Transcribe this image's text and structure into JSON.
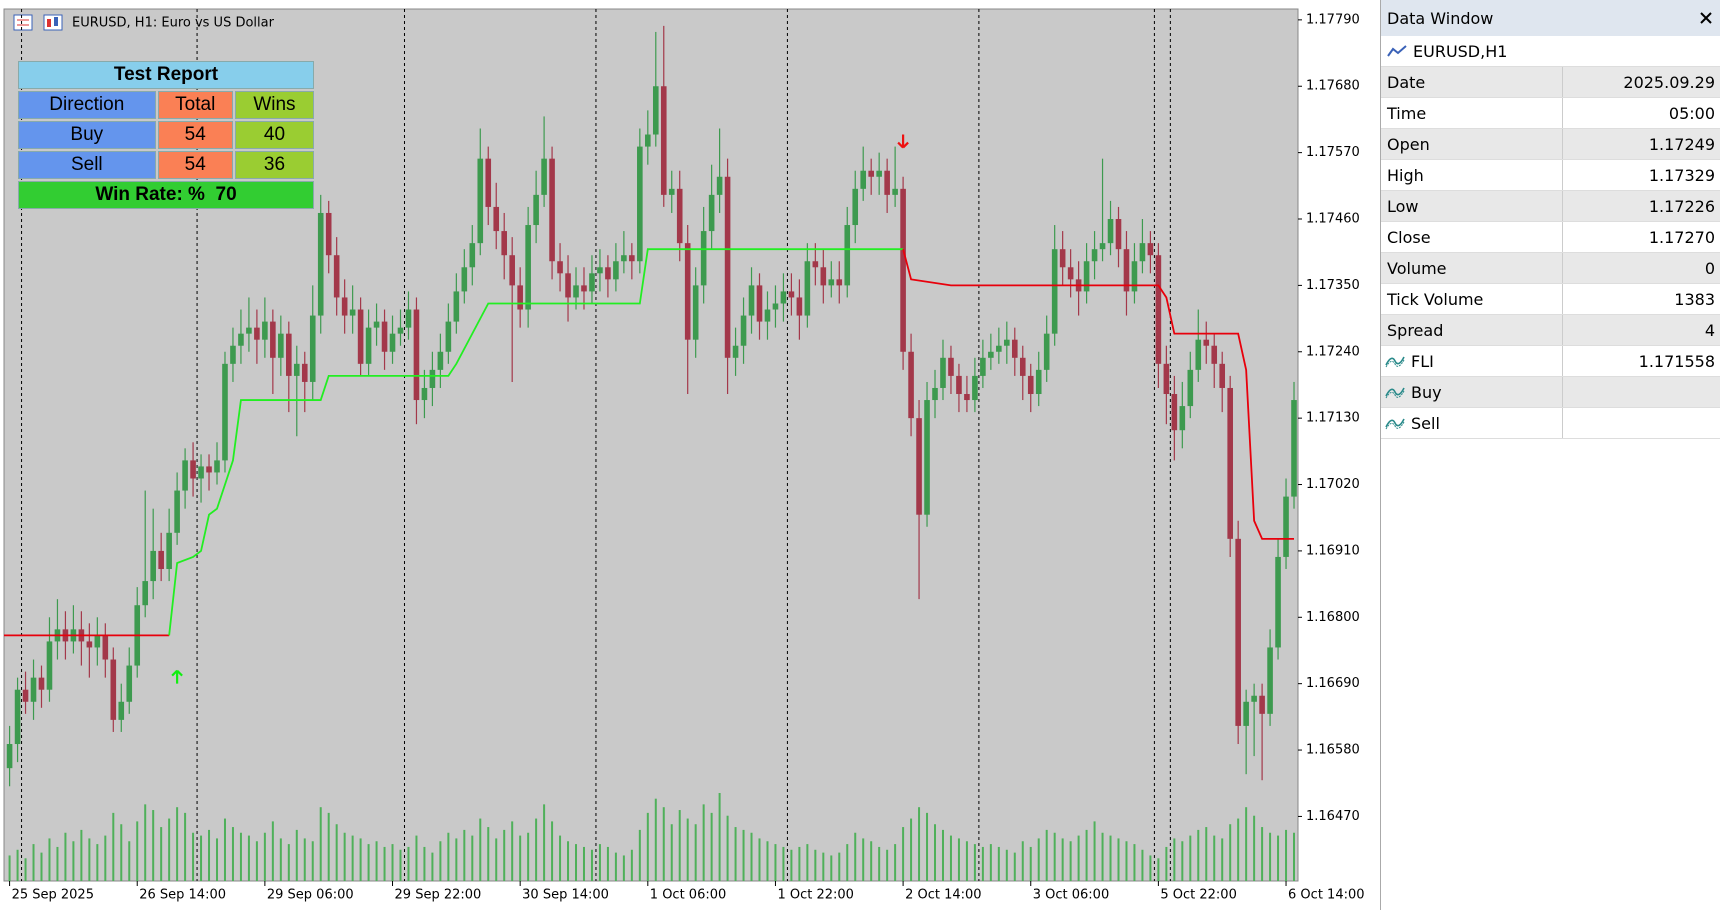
{
  "window_title": "EURUSD, H1:  Euro vs US Dollar",
  "report": {
    "title": "Test Report",
    "headers": [
      "Direction",
      "Total",
      "Wins"
    ],
    "rows": [
      [
        "Buy",
        54,
        40
      ],
      [
        "Sell",
        54,
        36
      ]
    ],
    "win_rate_label": "Win Rate: %",
    "win_rate": 70
  },
  "data_window": {
    "title": "Data Window",
    "symbol": "EURUSD,H1",
    "rows": [
      {
        "label": "Date",
        "value": "2025.09.29"
      },
      {
        "label": "Time",
        "value": "05:00"
      },
      {
        "label": "Open",
        "value": "1.17249"
      },
      {
        "label": "High",
        "value": "1.17329"
      },
      {
        "label": "Low",
        "value": "1.17226"
      },
      {
        "label": "Close",
        "value": "1.17270"
      },
      {
        "label": "Volume",
        "value": "0"
      },
      {
        "label": "Tick Volume",
        "value": "1383"
      },
      {
        "label": "Spread",
        "value": "4"
      },
      {
        "label": "FLI",
        "value": "1.171558",
        "indicator": true
      },
      {
        "label": "Buy",
        "indicator": true
      },
      {
        "label": "Sell",
        "indicator": true
      }
    ]
  },
  "chart_data": {
    "type": "candlestick",
    "up_color": "#3d9a4f",
    "down_color": "#a3384a",
    "volume_color": "#4fb05a",
    "background": "#c9c9c9",
    "xlim": [
      -0.7,
      161.5
    ],
    "ylim": [
      1.16363,
      1.17808
    ],
    "yticks": [
      {
        "value": 1.1779,
        "label": "1.17790"
      },
      {
        "value": 1.1768,
        "label": "1.17680"
      },
      {
        "value": 1.1757,
        "label": "1.17570"
      },
      {
        "value": 1.1746,
        "label": "1.17460"
      },
      {
        "value": 1.1735,
        "label": "1.17350"
      },
      {
        "value": 1.1724,
        "label": "1.17240"
      },
      {
        "value": 1.1713,
        "label": "1.17130"
      },
      {
        "value": 1.1702,
        "label": "1.17020"
      },
      {
        "value": 1.1691,
        "label": "1.16910"
      },
      {
        "value": 1.168,
        "label": "1.16800"
      },
      {
        "value": 1.1669,
        "label": "1.16690"
      },
      {
        "value": 1.1658,
        "label": "1.16580"
      },
      {
        "value": 1.1647,
        "label": "1.16470"
      }
    ],
    "xticks": [
      {
        "value": 0,
        "label": "25 Sep 2025"
      },
      {
        "value": 16,
        "label": "26 Sep 14:00"
      },
      {
        "value": 32,
        "label": "29 Sep 06:00"
      },
      {
        "value": 48,
        "label": "29 Sep 22:00"
      },
      {
        "value": 64,
        "label": "30 Sep 14:00"
      },
      {
        "value": 80,
        "label": "1 Oct 06:00"
      },
      {
        "value": 96,
        "label": "1 Oct 22:00"
      },
      {
        "value": 112,
        "label": "2 Oct 14:00"
      },
      {
        "value": 128,
        "label": "3 Oct 06:00"
      },
      {
        "value": 144,
        "label": "5 Oct 22:00"
      },
      {
        "value": 160,
        "label": "6 Oct 14:00"
      }
    ],
    "separators": [
      2,
      24,
      50,
      74,
      98,
      122,
      144,
      146
    ],
    "candles": [
      [
        1.1655,
        1.1662,
        1.1652,
        1.1659
      ],
      [
        1.1659,
        1.167,
        1.1656,
        1.1668
      ],
      [
        1.1668,
        1.1671,
        1.1664,
        1.1666
      ],
      [
        1.1666,
        1.1673,
        1.1663,
        1.167
      ],
      [
        1.167,
        1.1672,
        1.1665,
        1.1668
      ],
      [
        1.1668,
        1.168,
        1.1666,
        1.1676
      ],
      [
        1.1676,
        1.1683,
        1.1673,
        1.1678
      ],
      [
        1.1678,
        1.1681,
        1.1673,
        1.1676
      ],
      [
        1.1676,
        1.1682,
        1.1674,
        1.1678
      ],
      [
        1.1678,
        1.1681,
        1.1672,
        1.1676
      ],
      [
        1.1676,
        1.1679,
        1.167,
        1.1675
      ],
      [
        1.1675,
        1.168,
        1.1672,
        1.1677
      ],
      [
        1.1677,
        1.1679,
        1.167,
        1.1673
      ],
      [
        1.1673,
        1.1675,
        1.1661,
        1.1663
      ],
      [
        1.1663,
        1.1669,
        1.1661,
        1.1666
      ],
      [
        1.1666,
        1.1675,
        1.1664,
        1.1672
      ],
      [
        1.1672,
        1.1685,
        1.167,
        1.1682
      ],
      [
        1.1682,
        1.1701,
        1.168,
        1.1686
      ],
      [
        1.1686,
        1.1698,
        1.1683,
        1.1691
      ],
      [
        1.1691,
        1.1694,
        1.1686,
        1.1688
      ],
      [
        1.1688,
        1.1698,
        1.1686,
        1.1694
      ],
      [
        1.1694,
        1.1704,
        1.1692,
        1.1701
      ],
      [
        1.1701,
        1.1708,
        1.1698,
        1.1706
      ],
      [
        1.1706,
        1.1709,
        1.17,
        1.1703
      ],
      [
        1.1703,
        1.1707,
        1.1699,
        1.1705
      ],
      [
        1.1705,
        1.1707,
        1.1701,
        1.1704
      ],
      [
        1.1704,
        1.1709,
        1.1702,
        1.1706
      ],
      [
        1.1706,
        1.1724,
        1.1704,
        1.1722
      ],
      [
        1.1722,
        1.1728,
        1.1719,
        1.1725
      ],
      [
        1.1725,
        1.1731,
        1.1722,
        1.1727
      ],
      [
        1.1727,
        1.1733,
        1.1724,
        1.1728
      ],
      [
        1.1728,
        1.1731,
        1.1722,
        1.1726
      ],
      [
        1.1726,
        1.1733,
        1.1723,
        1.1729
      ],
      [
        1.1729,
        1.1731,
        1.1717,
        1.1723
      ],
      [
        1.1723,
        1.173,
        1.172,
        1.1727
      ],
      [
        1.1727,
        1.1729,
        1.1714,
        1.172
      ],
      [
        1.172,
        1.1725,
        1.171,
        1.1722
      ],
      [
        1.1722,
        1.1724,
        1.1714,
        1.1719
      ],
      [
        1.1719,
        1.1735,
        1.1716,
        1.173
      ],
      [
        1.173,
        1.175,
        1.1727,
        1.1747
      ],
      [
        1.1747,
        1.1749,
        1.1737,
        1.174
      ],
      [
        1.174,
        1.1743,
        1.173,
        1.1733
      ],
      [
        1.1733,
        1.1736,
        1.1727,
        1.173
      ],
      [
        1.173,
        1.1735,
        1.1727,
        1.1731
      ],
      [
        1.1731,
        1.1733,
        1.172,
        1.1722
      ],
      [
        1.1722,
        1.1731,
        1.172,
        1.1728
      ],
      [
        1.1728,
        1.1732,
        1.1725,
        1.1729
      ],
      [
        1.1729,
        1.1731,
        1.1721,
        1.1724
      ],
      [
        1.1724,
        1.173,
        1.1722,
        1.1727
      ],
      [
        1.1727,
        1.1731,
        1.1725,
        1.1728
      ],
      [
        1.1728,
        1.1734,
        1.1726,
        1.1731
      ],
      [
        1.1731,
        1.1733,
        1.1712,
        1.1716
      ],
      [
        1.1716,
        1.1721,
        1.1713,
        1.1718
      ],
      [
        1.1718,
        1.1724,
        1.1715,
        1.1721
      ],
      [
        1.1721,
        1.1727,
        1.1718,
        1.1724
      ],
      [
        1.1724,
        1.1732,
        1.1722,
        1.1729
      ],
      [
        1.1729,
        1.1737,
        1.1727,
        1.1734
      ],
      [
        1.1734,
        1.1741,
        1.1732,
        1.1738
      ],
      [
        1.1738,
        1.1745,
        1.1735,
        1.1742
      ],
      [
        1.1742,
        1.1761,
        1.174,
        1.1756
      ],
      [
        1.1756,
        1.1758,
        1.1745,
        1.1748
      ],
      [
        1.1748,
        1.1752,
        1.1741,
        1.1744
      ],
      [
        1.1744,
        1.1747,
        1.1736,
        1.174
      ],
      [
        1.174,
        1.1743,
        1.1719,
        1.1735
      ],
      [
        1.1735,
        1.1738,
        1.1728,
        1.1731
      ],
      [
        1.1731,
        1.1748,
        1.1728,
        1.1745
      ],
      [
        1.1745,
        1.1754,
        1.1742,
        1.175
      ],
      [
        1.175,
        1.1763,
        1.1748,
        1.1756
      ],
      [
        1.1756,
        1.1758,
        1.1736,
        1.1739
      ],
      [
        1.1739,
        1.1742,
        1.1734,
        1.1737
      ],
      [
        1.1737,
        1.174,
        1.1729,
        1.1733
      ],
      [
        1.1733,
        1.1738,
        1.1731,
        1.1735
      ],
      [
        1.1735,
        1.1738,
        1.1731,
        1.1734
      ],
      [
        1.1734,
        1.174,
        1.1732,
        1.1737
      ],
      [
        1.1737,
        1.1741,
        1.1734,
        1.1738
      ],
      [
        1.1738,
        1.174,
        1.1733,
        1.1736
      ],
      [
        1.1736,
        1.1742,
        1.1734,
        1.1739
      ],
      [
        1.1739,
        1.1744,
        1.1737,
        1.174
      ],
      [
        1.174,
        1.1742,
        1.1736,
        1.1739
      ],
      [
        1.1739,
        1.1761,
        1.1737,
        1.1758
      ],
      [
        1.1758,
        1.1764,
        1.1755,
        1.176
      ],
      [
        1.176,
        1.1777,
        1.1758,
        1.1768
      ],
      [
        1.1768,
        1.1778,
        1.1748,
        1.175
      ],
      [
        1.175,
        1.1754,
        1.1747,
        1.1751
      ],
      [
        1.1751,
        1.1754,
        1.1739,
        1.1742
      ],
      [
        1.1742,
        1.1745,
        1.1717,
        1.1726
      ],
      [
        1.1726,
        1.1738,
        1.1723,
        1.1735
      ],
      [
        1.1735,
        1.1748,
        1.1732,
        1.1744
      ],
      [
        1.1744,
        1.1755,
        1.1741,
        1.175
      ],
      [
        1.175,
        1.1761,
        1.1747,
        1.1753
      ],
      [
        1.1753,
        1.1756,
        1.1717,
        1.1723
      ],
      [
        1.1723,
        1.1728,
        1.172,
        1.1725
      ],
      [
        1.1725,
        1.1733,
        1.1722,
        1.173
      ],
      [
        1.173,
        1.1738,
        1.1727,
        1.1735
      ],
      [
        1.1735,
        1.1737,
        1.1726,
        1.1729
      ],
      [
        1.1729,
        1.1734,
        1.1726,
        1.1731
      ],
      [
        1.1731,
        1.1735,
        1.1728,
        1.1732
      ],
      [
        1.1732,
        1.1737,
        1.1729,
        1.1734
      ],
      [
        1.1734,
        1.1737,
        1.173,
        1.1733
      ],
      [
        1.1733,
        1.1736,
        1.1726,
        1.173
      ],
      [
        1.173,
        1.1742,
        1.1728,
        1.1739
      ],
      [
        1.1739,
        1.1742,
        1.1735,
        1.1738
      ],
      [
        1.1738,
        1.1741,
        1.1732,
        1.1735
      ],
      [
        1.1735,
        1.1739,
        1.1733,
        1.1736
      ],
      [
        1.1736,
        1.1739,
        1.1732,
        1.1735
      ],
      [
        1.1735,
        1.1748,
        1.1733,
        1.1745
      ],
      [
        1.1745,
        1.1754,
        1.1742,
        1.1751
      ],
      [
        1.1751,
        1.1758,
        1.1749,
        1.1754
      ],
      [
        1.1754,
        1.1756,
        1.175,
        1.1753
      ],
      [
        1.1753,
        1.1757,
        1.175,
        1.1754
      ],
      [
        1.1754,
        1.1756,
        1.1747,
        1.175
      ],
      [
        1.175,
        1.1758,
        1.1748,
        1.1751
      ],
      [
        1.1751,
        1.1753,
        1.1721,
        1.1724
      ],
      [
        1.1724,
        1.1727,
        1.171,
        1.1713
      ],
      [
        1.1713,
        1.1716,
        1.1683,
        1.1697
      ],
      [
        1.1697,
        1.1719,
        1.1695,
        1.1716
      ],
      [
        1.1716,
        1.1721,
        1.1713,
        1.1718
      ],
      [
        1.1718,
        1.1726,
        1.1716,
        1.1723
      ],
      [
        1.1723,
        1.1725,
        1.1717,
        1.172
      ],
      [
        1.172,
        1.1722,
        1.1714,
        1.1717
      ],
      [
        1.1717,
        1.172,
        1.1714,
        1.1716
      ],
      [
        1.1716,
        1.1723,
        1.1714,
        1.172
      ],
      [
        1.172,
        1.1726,
        1.1718,
        1.1723
      ],
      [
        1.1723,
        1.1727,
        1.1721,
        1.1724
      ],
      [
        1.1724,
        1.1728,
        1.1722,
        1.1725
      ],
      [
        1.1725,
        1.1729,
        1.1722,
        1.1726
      ],
      [
        1.1726,
        1.1728,
        1.172,
        1.1723
      ],
      [
        1.1723,
        1.1725,
        1.1716,
        1.172
      ],
      [
        1.172,
        1.1722,
        1.1714,
        1.1717
      ],
      [
        1.1717,
        1.1724,
        1.1715,
        1.1721
      ],
      [
        1.1721,
        1.173,
        1.1719,
        1.1727
      ],
      [
        1.1727,
        1.1745,
        1.1725,
        1.1741
      ],
      [
        1.1741,
        1.1744,
        1.1735,
        1.1738
      ],
      [
        1.1738,
        1.1741,
        1.1733,
        1.1736
      ],
      [
        1.1736,
        1.1739,
        1.173,
        1.1734
      ],
      [
        1.1734,
        1.1742,
        1.1732,
        1.1739
      ],
      [
        1.1739,
        1.1744,
        1.1736,
        1.1741
      ],
      [
        1.1741,
        1.1756,
        1.1739,
        1.1742
      ],
      [
        1.1742,
        1.1749,
        1.174,
        1.1746
      ],
      [
        1.1746,
        1.1748,
        1.1738,
        1.1741
      ],
      [
        1.1741,
        1.1744,
        1.173,
        1.1734
      ],
      [
        1.1734,
        1.1742,
        1.1732,
        1.1739
      ],
      [
        1.1739,
        1.1746,
        1.1737,
        1.1742
      ],
      [
        1.1742,
        1.1744,
        1.1737,
        1.174
      ],
      [
        1.174,
        1.1742,
        1.1718,
        1.1722
      ],
      [
        1.1722,
        1.1725,
        1.1712,
        1.1717
      ],
      [
        1.1717,
        1.172,
        1.1706,
        1.1711
      ],
      [
        1.1711,
        1.1719,
        1.1708,
        1.1715
      ],
      [
        1.1715,
        1.1724,
        1.1713,
        1.1721
      ],
      [
        1.1721,
        1.1731,
        1.1719,
        1.1726
      ],
      [
        1.1726,
        1.1729,
        1.1722,
        1.1725
      ],
      [
        1.1725,
        1.1727,
        1.1718,
        1.1722
      ],
      [
        1.1722,
        1.1724,
        1.1714,
        1.1718
      ],
      [
        1.1718,
        1.172,
        1.169,
        1.1693
      ],
      [
        1.1693,
        1.1696,
        1.1659,
        1.1662
      ],
      [
        1.1662,
        1.1668,
        1.1654,
        1.1666
      ],
      [
        1.1666,
        1.1669,
        1.1657,
        1.1667
      ],
      [
        1.1667,
        1.1669,
        1.1653,
        1.1664
      ],
      [
        1.1664,
        1.1678,
        1.1662,
        1.1675
      ],
      [
        1.1675,
        1.1693,
        1.1673,
        1.169
      ],
      [
        1.169,
        1.1703,
        1.1688,
        1.17
      ],
      [
        1.17,
        1.1719,
        1.1698,
        1.1716
      ]
    ],
    "volumes": [
      900,
      1100,
      800,
      1300,
      1000,
      1500,
      1200,
      1700,
      1400,
      1800,
      1500,
      1300,
      1600,
      2400,
      2000,
      1400,
      2100,
      2700,
      2500,
      1900,
      2200,
      2600,
      2400,
      1700,
      1600,
      1800,
      1500,
      2200,
      1900,
      1700,
      1600,
      1400,
      1700,
      2100,
      1500,
      1300,
      1800,
      1500,
      1400,
      2600,
      2400,
      2000,
      1700,
      1600,
      1500,
      1300,
      1400,
      1200,
      1300,
      1100,
      1200,
      1600,
      1200,
      1000,
      1400,
      1700,
      1500,
      1800,
      1600,
      2200,
      1900,
      1500,
      1800,
      2100,
      1600,
      1700,
      2200,
      2700,
      2100,
      1600,
      1400,
      1300,
      1200,
      1100,
      1300,
      1200,
      1000,
      900,
      1100,
      1800,
      2400,
      2900,
      2600,
      2000,
      2500,
      2200,
      2000,
      2700,
      2400,
      3100,
      2300,
      1900,
      1800,
      1700,
      1500,
      1400,
      1300,
      1200,
      1100,
      1200,
      1300,
      1100,
      1000,
      900,
      1000,
      1300,
      1700,
      1500,
      1400,
      1200,
      1100,
      1300,
      1900,
      2200,
      2600,
      2400,
      2000,
      1800,
      1600,
      1500,
      1400,
      1300,
      1200,
      1300,
      1200,
      1100,
      1000,
      1400,
      1200,
      1500,
      1800,
      1700,
      1500,
      1400,
      1600,
      1800,
      2100,
      1700,
      1600,
      1500,
      1400,
      1300,
      1100,
      900,
      800,
      1200,
      1500,
      1400,
      1600,
      1800,
      1900,
      1600,
      1500,
      2000,
      2200,
      2600,
      2300,
      1900,
      1700,
      1600,
      1800,
      1700
    ],
    "fli_segments": [
      {
        "color": "#e8000b",
        "x": [
          -0.7,
          20
        ],
        "values": [
          1.1677,
          1.1677
        ]
      },
      {
        "color": "#22ee22",
        "x": [
          20,
          21,
          23,
          24,
          25,
          26,
          28,
          29,
          39,
          40,
          55,
          56,
          60,
          79,
          80,
          112
        ],
        "values": [
          1.1677,
          1.1689,
          1.169,
          1.1691,
          1.1697,
          1.1698,
          1.1706,
          1.1716,
          1.1716,
          1.172,
          1.172,
          1.1722,
          1.1732,
          1.1732,
          1.1741,
          1.1741
        ]
      },
      {
        "color": "#e8000b",
        "x": [
          112,
          113,
          118,
          144,
          145,
          146,
          154,
          155,
          156,
          157,
          161
        ],
        "values": [
          1.1741,
          1.1736,
          1.1735,
          1.1735,
          1.1733,
          1.1727,
          1.1727,
          1.1721,
          1.1696,
          1.1693,
          1.1693
        ]
      }
    ],
    "signals": [
      {
        "dir": "up",
        "x": 21,
        "y": 1.167,
        "color": "#11ee11"
      },
      {
        "dir": "down",
        "x": 112,
        "y": 1.1759,
        "color": "#ee1111"
      }
    ]
  }
}
